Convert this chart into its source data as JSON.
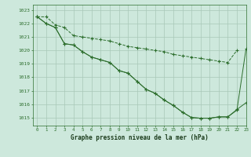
{
  "title": "Graphe pression niveau de la mer (hPa)",
  "bg_color": "#cde8dc",
  "grid_color": "#a8c8b8",
  "line_color": "#2d6e2d",
  "xlim": [
    -0.5,
    23
  ],
  "ylim": [
    1014.4,
    1023.4
  ],
  "yticks": [
    1015,
    1016,
    1017,
    1018,
    1019,
    1020,
    1021,
    1022,
    1023
  ],
  "xticks": [
    0,
    1,
    2,
    3,
    4,
    5,
    6,
    7,
    8,
    9,
    10,
    11,
    12,
    13,
    14,
    15,
    16,
    17,
    18,
    19,
    20,
    21,
    22,
    23
  ],
  "series1": [
    1022.5,
    1022.5,
    1021.9,
    1021.7,
    1021.1,
    1021.0,
    1020.9,
    1020.8,
    1020.7,
    1020.5,
    1020.3,
    1020.2,
    1020.1,
    1020.0,
    1019.9,
    1019.7,
    1019.6,
    1019.5,
    1019.4,
    1019.3,
    1019.2,
    1019.1,
    1020.0,
    null
  ],
  "series2": [
    1022.5,
    1022.0,
    1021.7,
    1020.5,
    1020.4,
    1019.9,
    1019.5,
    1019.3,
    1019.1,
    1018.5,
    1018.3,
    1017.7,
    1017.1,
    1016.8,
    1016.3,
    1015.9,
    1015.4,
    1015.0,
    1014.95,
    1014.95,
    1015.05,
    1015.05,
    1015.55,
    1020.1
  ],
  "series3": [
    1022.5,
    1022.0,
    1021.7,
    1020.5,
    1020.4,
    1019.9,
    1019.5,
    1019.3,
    1019.1,
    1018.5,
    1018.3,
    1017.7,
    1017.1,
    1016.8,
    1016.3,
    1015.9,
    1015.4,
    1015.0,
    1014.95,
    1014.95,
    1015.05,
    1015.05,
    1015.6,
    1016.1
  ]
}
